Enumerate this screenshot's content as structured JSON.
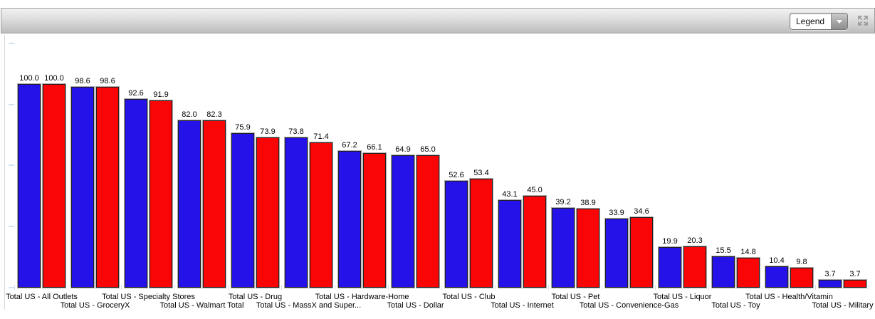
{
  "toolbar": {
    "legend_dropdown": {
      "value": "Legend"
    },
    "expand_icon": "expand-arrows-icon"
  },
  "chart_data": {
    "type": "bar",
    "title": "",
    "xlabel": "",
    "ylabel": "",
    "categories": [
      "Total US - All Outlets",
      "Total US - GroceryX",
      "Total US - Specialty Stores",
      "Total US - Walmart Total",
      "Total US - Drug",
      "Total US - MassX and Super...",
      "Total US - Hardware-Home",
      "Total US - Dollar",
      "Total US - Club",
      "Total US - Internet",
      "Total US - Pet",
      "Total US - Convenience-Gas",
      "Total US - Liquor",
      "Total US - Toy",
      "Total US - Health/Vitamin",
      "Total US - Military"
    ],
    "series": [
      {
        "color": "#2412e8",
        "values": [
          100.0,
          98.6,
          92.6,
          82.0,
          75.9,
          73.8,
          67.2,
          64.9,
          52.6,
          43.1,
          39.2,
          33.9,
          19.9,
          15.5,
          10.4,
          3.7
        ]
      },
      {
        "color": "#fa0505",
        "values": [
          100.0,
          98.6,
          91.9,
          82.3,
          73.9,
          71.4,
          66.1,
          65.0,
          53.4,
          45.0,
          38.9,
          34.6,
          20.3,
          14.8,
          9.8,
          3.7
        ]
      }
    ],
    "value_labels": true,
    "ylim": [
      0,
      120
    ],
    "y_ticks": [
      0,
      30,
      60,
      90,
      120
    ],
    "y_tick_labels_visible": false,
    "grid": false,
    "legend_position": "toolbar-dropdown-collapsed"
  },
  "style": {
    "bar_border": "#202020",
    "bar_outer_edge": "#a9a9a9",
    "axis_line_color": "#d8d8d8",
    "tick_color": "#cfe2f3",
    "toolbar_border": "#9e9e9e"
  }
}
